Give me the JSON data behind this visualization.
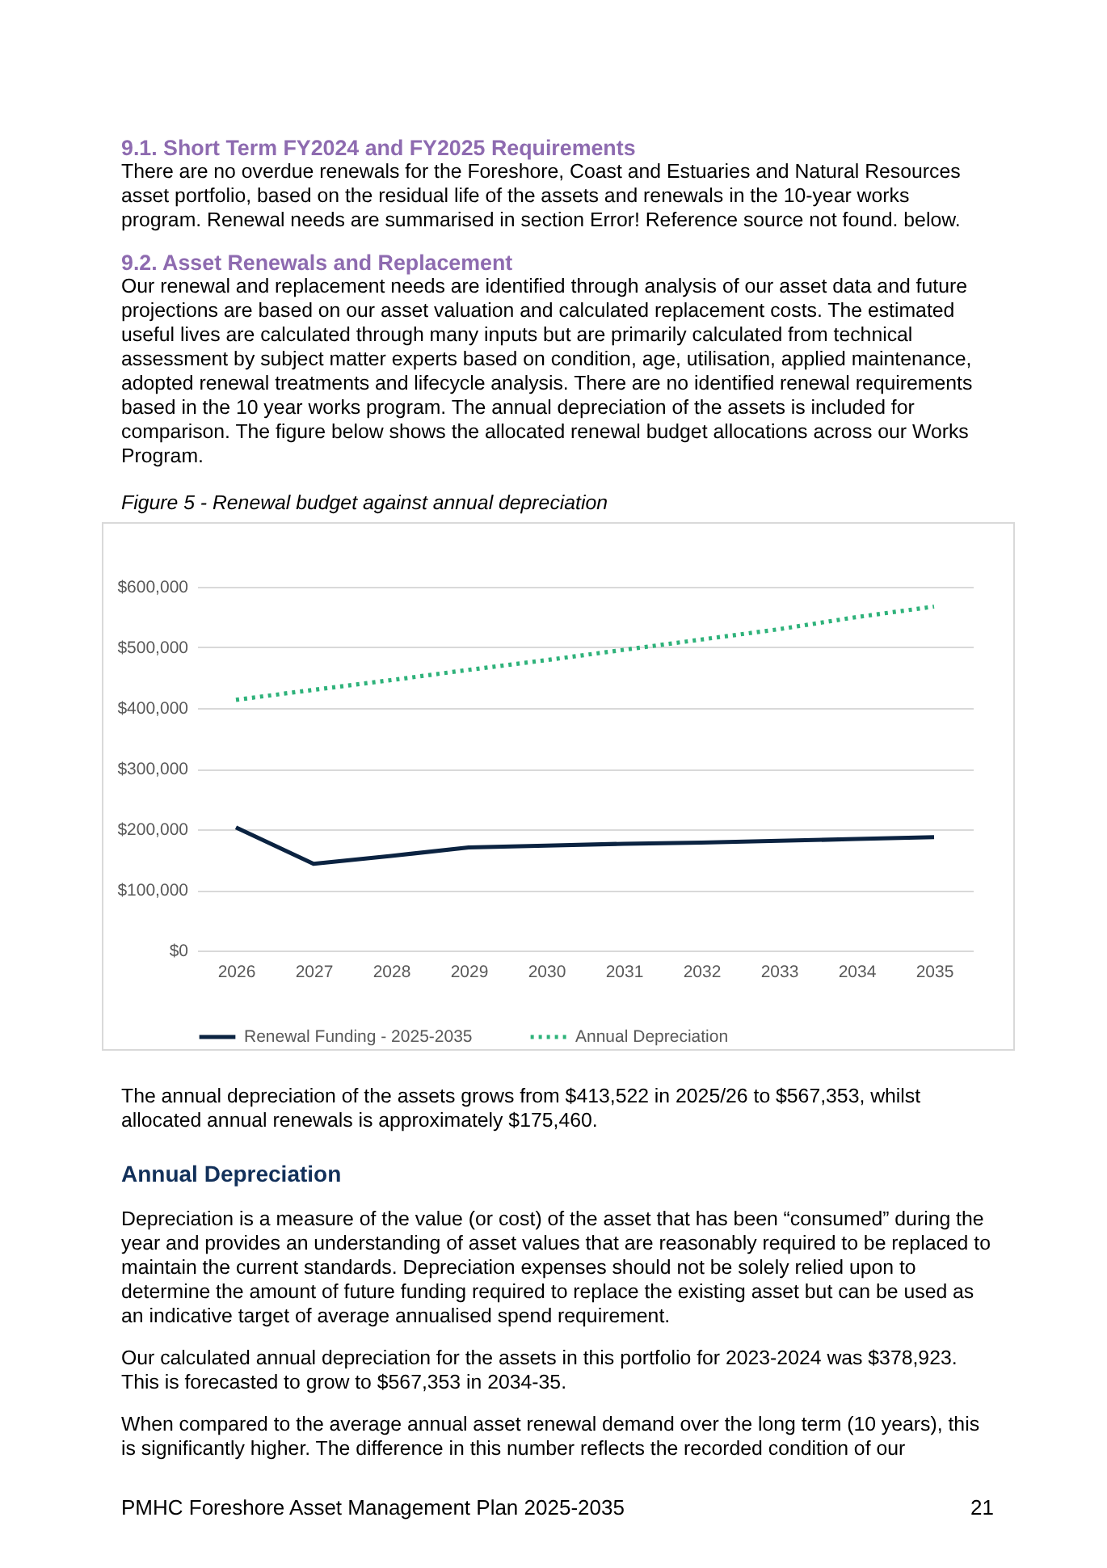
{
  "chart_data": {
    "type": "line",
    "title": "Figure 5 - Renewal budget against annual depreciation",
    "categories": [
      "2026",
      "2027",
      "2028",
      "2029",
      "2030",
      "2031",
      "2032",
      "2033",
      "2034",
      "2035"
    ],
    "series": [
      {
        "name": "Renewal Funding - 2025-2035",
        "color": "#0b2341",
        "line_style": "solid",
        "values": [
          203000,
          143000,
          156000,
          170000,
          173000,
          176000,
          178000,
          181000,
          184000,
          187000
        ]
      },
      {
        "name": "Annual Depreciation",
        "color": "#2eb27a",
        "line_style": "dotted",
        "values": [
          413522,
          430000,
          446000,
          463000,
          479000,
          496000,
          513000,
          530000,
          550000,
          567353
        ]
      }
    ],
    "ylim": [
      0,
      600000
    ],
    "yticks": [
      {
        "value": 0,
        "label": "$0"
      },
      {
        "value": 100000,
        "label": "$100,000"
      },
      {
        "value": 200000,
        "label": "$200,000"
      },
      {
        "value": 300000,
        "label": "$300,000"
      },
      {
        "value": 400000,
        "label": "$400,000"
      },
      {
        "value": 500000,
        "label": "$500,000"
      },
      {
        "value": 600000,
        "label": "$600,000"
      }
    ],
    "grid": "y",
    "legend": "bottom",
    "marker": "none",
    "annotations": [
      "9.1.  Short Term FY2024 and FY2025 Requirements",
      "There are no overdue renewals for the Foreshore, Coast and Estuaries and Natural Resources asset portfolio, based on the residual life of the assets and renewals in the 10-year works program. Renewal needs are summarised in section Error! Reference source not found. below.",
      "9.2.  Asset Renewals and Replacement",
      "Our renewal and replacement needs are identified through analysis of our asset data and future projections are based on our asset valuation and calculated replacement costs. The estimated useful lives are calculated through many inputs but are primarily calculated from technical assessment by subject matter experts based on condition, age, utilisation, applied maintenance, adopted renewal treatments and lifecycle analysis. There are no identified renewal requirements based in the 10 year works program. The annual depreciation of the assets is included for comparison. The figure below shows the allocated renewal budget allocations across our Works Program.",
      "The annual depreciation of the assets grows from $413,522 in 2025/26 to $567,353, whilst allocated annual renewals is approximately $175,460.",
      "Annual Depreciation",
      "Depreciation is a measure of the value (or cost) of the asset that has been “consumed” during the year and provides an understanding of asset values that are reasonably required to be replaced to maintain the current standards. Depreciation expenses should not be solely relied upon to determine the amount of future funding required to replace the existing asset but can be used as an indicative target of average annualised spend requirement.",
      "Our calculated annual depreciation for the assets in this portfolio for 2023-2024 was $378,923. This is forecasted to grow to $567,353 in 2034-35.",
      "When compared to the average annual asset renewal demand over the long term (10 years), this is significantly higher. The difference in this number reflects the recorded condition of our",
      "PMHC Foreshore Asset Management Plan 2025-2035",
      "21"
    ]
  }
}
